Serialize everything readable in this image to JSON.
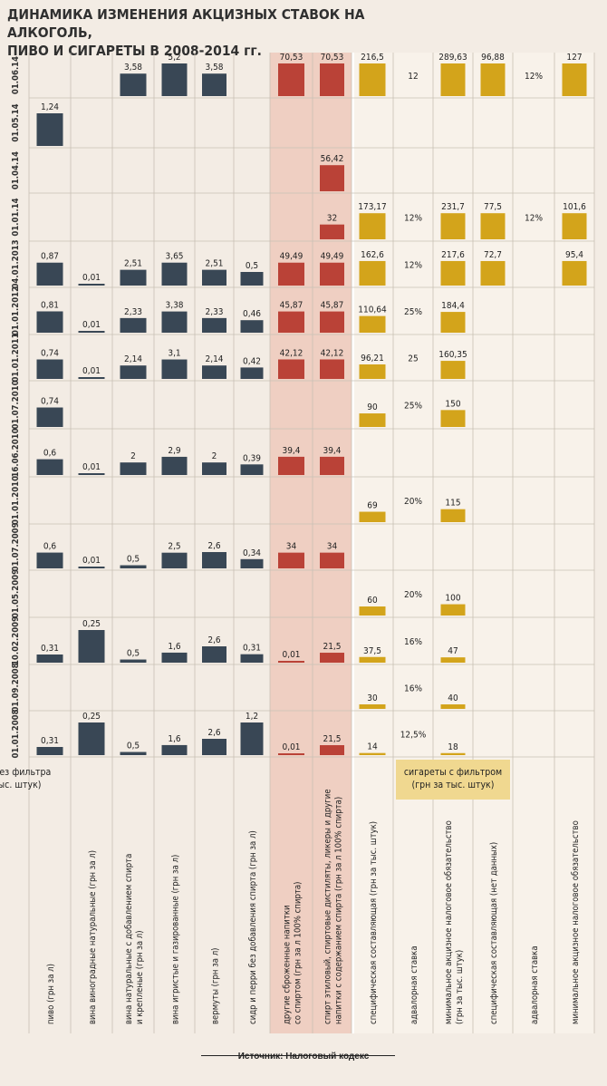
{
  "title": [
    "ДИНАМИКА ИЗМЕНЕНИЯ АКЦИЗНЫХ СТАВОК НА АЛКОГОЛЬ,",
    "ПИВО И СИГАРЕТЫ В 2008-2014 гг."
  ],
  "source": "Источник: Налоговый кодекс",
  "colors": {
    "background": "#f3ece4",
    "alcohol_band": "#efcfc2",
    "cigarettes_panel": "#f8f2ea",
    "steel_bars": "#394755",
    "red_bars": "#ba4237",
    "gold_bars": "#d3a41b",
    "header_box": "#f0d890",
    "grid": "#c8c0b4"
  },
  "chart_data": {
    "type": "bar",
    "layout": "column matrix of small bar charts: rows are effective dates, columns are excise categories",
    "dates": [
      "01.06.14",
      "01.05.14",
      "01.04.14",
      "01.01.14",
      "04.01.2013",
      "01.01.2012",
      "01.01.2011",
      "01.07.2010",
      "16.06.2010",
      "01.01.2010",
      "01.07.2009",
      "01.05.2009",
      "10.02.2009",
      "01.09.2008",
      "01.01.2008"
    ],
    "groups": [
      {
        "label": "сигареты с фильтром\n(грн за тыс. штук)",
        "columns": [
          9,
          10,
          11
        ]
      },
      {
        "label": "сигареты без фильтра\n(грн за тыс. штук)",
        "columns": [
          12,
          13,
          14
        ]
      }
    ],
    "series": [
      {
        "name": "пиво (грн за л)",
        "color": "steel",
        "max": 1.24,
        "values": [
          null,
          1.24,
          null,
          null,
          0.87,
          0.81,
          0.74,
          0.74,
          0.6,
          null,
          0.6,
          null,
          0.31,
          null,
          0.31
        ],
        "labels": [
          null,
          "1,24",
          null,
          null,
          "0,87",
          "0,81",
          "0,74",
          "0,74",
          "0,6",
          null,
          "0,6",
          null,
          "0,31",
          null,
          "0,31"
        ]
      },
      {
        "name": "вина виноградные натуральные (грн за л)",
        "color": "steel",
        "max": 0.25,
        "values": [
          null,
          null,
          null,
          null,
          0.01,
          0.01,
          0.01,
          null,
          0.01,
          null,
          0.01,
          null,
          0.25,
          null,
          0.25
        ],
        "labels": [
          null,
          null,
          null,
          null,
          "0,01",
          "0,01",
          "0,01",
          null,
          "0,01",
          null,
          "0,01",
          null,
          "0,25",
          null,
          "0,25"
        ]
      },
      {
        "name": "вина натуральные с добавлением спирта\nи крепленые (грн за л)",
        "color": "steel",
        "max": 5.2,
        "values": [
          3.58,
          null,
          null,
          null,
          2.51,
          2.33,
          2.14,
          null,
          2,
          null,
          0.5,
          null,
          0.5,
          null,
          0.5
        ],
        "labels": [
          "3,58",
          null,
          null,
          null,
          "2,51",
          "2,33",
          "2,14",
          null,
          "2",
          null,
          "0,5",
          null,
          "0,5",
          null,
          "0,5"
        ]
      },
      {
        "name": "вина игристые и газированные (грн за л)",
        "color": "steel",
        "max": 5.2,
        "values": [
          5.2,
          null,
          null,
          null,
          3.65,
          3.38,
          3.1,
          null,
          2.9,
          null,
          2.5,
          null,
          1.6,
          null,
          1.6
        ],
        "labels": [
          "5,2",
          null,
          null,
          null,
          "3,65",
          "3,38",
          "3,1",
          null,
          "2,9",
          null,
          "2,5",
          null,
          "1,6",
          null,
          "1,6"
        ]
      },
      {
        "name": "вермуты (грн за л)",
        "color": "steel",
        "max": 5.2,
        "values": [
          3.58,
          null,
          null,
          null,
          2.51,
          2.33,
          2.14,
          null,
          2,
          null,
          2.6,
          null,
          2.6,
          null,
          2.6
        ],
        "labels": [
          "3,58",
          null,
          null,
          null,
          "2,51",
          "2,33",
          "2,14",
          null,
          "2",
          null,
          "2,6",
          null,
          "2,6",
          null,
          "2,6"
        ]
      },
      {
        "name": "сидр и перри без добавления спирта (грн за л)",
        "color": "steel",
        "max": 1.2,
        "values": [
          null,
          null,
          null,
          null,
          0.5,
          0.46,
          0.42,
          null,
          0.39,
          null,
          0.34,
          null,
          0.31,
          null,
          1.2
        ],
        "labels": [
          null,
          null,
          null,
          null,
          "0,5",
          "0,46",
          "0,42",
          null,
          "0,39",
          null,
          "0,34",
          null,
          "0,31",
          null,
          "1,2"
        ]
      },
      {
        "name": "другие сброженные напитки\nсо спиртом (грн за л 100% спирта)",
        "color": "red",
        "max": 70.53,
        "values": [
          70.53,
          null,
          null,
          null,
          49.49,
          45.87,
          42.12,
          null,
          39.4,
          null,
          34,
          null,
          0.01,
          null,
          0.01
        ],
        "labels": [
          "70,53",
          null,
          null,
          null,
          "49,49",
          "45,87",
          "42,12",
          null,
          "39,4",
          null,
          "34",
          null,
          "0,01",
          null,
          "0,01"
        ]
      },
      {
        "name": "спирт этиловый, спиртовые дистиляты, ликеры и другие\nнапитки с содержанием спирта (грн за л 100% спирта)",
        "color": "red",
        "max": 70.53,
        "values": [
          70.53,
          null,
          56.42,
          32,
          49.49,
          45.87,
          42.12,
          null,
          39.4,
          null,
          34,
          null,
          21.5,
          null,
          21.5
        ],
        "labels": [
          "70,53",
          null,
          "56,42",
          "32",
          "49,49",
          "45,87",
          "42,12",
          null,
          "39,4",
          null,
          "34",
          null,
          "21,5",
          null,
          "21,5"
        ]
      },
      {
        "name": "специфическая составляющая (грн за тыс. штук)",
        "color": "gold",
        "max": 216.5,
        "values": [
          216.5,
          null,
          null,
          173.17,
          162.6,
          110.64,
          96.21,
          90,
          null,
          69,
          null,
          60,
          37.5,
          30,
          14
        ],
        "labels": [
          "216,5",
          null,
          null,
          "173,17",
          "162,6",
          "110,64",
          "96,21",
          "90",
          null,
          "69",
          null,
          "60",
          "37,5",
          "30",
          "14"
        ]
      },
      {
        "name": "адвалорная ставка",
        "color": "text",
        "max": null,
        "values": [
          12,
          null,
          null,
          12,
          12,
          25,
          25,
          25,
          null,
          20,
          null,
          20,
          16,
          16,
          12.5
        ],
        "labels": [
          "12",
          null,
          null,
          "12%",
          "12%",
          "25%",
          "25",
          "25%",
          null,
          "20%",
          null,
          "20%",
          "16%",
          "16%",
          "12,5%"
        ]
      },
      {
        "name": "минимальное акцизное налоговое обязательство\n(грн за тыс. штук)",
        "color": "gold",
        "max": 289.63,
        "values": [
          289.63,
          null,
          null,
          231.7,
          217.6,
          184.4,
          160.35,
          150,
          null,
          115,
          null,
          100,
          47,
          40,
          18
        ],
        "labels": [
          "289,63",
          null,
          null,
          "231,7",
          "217,6",
          "184,4",
          "160,35",
          "150",
          null,
          "115",
          null,
          "100",
          "47",
          "40",
          "18"
        ]
      },
      {
        "name": "специфическая составляющая (нет данных)",
        "color": "gold",
        "max": 96.88,
        "values": [
          96.88,
          null,
          null,
          77.5,
          72.7,
          null,
          null,
          null,
          null,
          null,
          null,
          null,
          null,
          null,
          null
        ],
        "labels": [
          "96,88",
          null,
          null,
          "77,5",
          "72,7",
          null,
          null,
          null,
          null,
          null,
          null,
          null,
          null,
          null,
          null
        ]
      },
      {
        "name": "адвалорная ставка",
        "color": "text",
        "max": null,
        "values": [
          12,
          null,
          null,
          12,
          null,
          null,
          null,
          null,
          null,
          null,
          null,
          null,
          null,
          null,
          null
        ],
        "labels": [
          "12%",
          null,
          null,
          "12%",
          null,
          null,
          null,
          null,
          null,
          null,
          null,
          null,
          null,
          null,
          null
        ]
      },
      {
        "name": "минимальное акцизное налоговое обязательство",
        "color": "gold",
        "max": 127,
        "values": [
          127,
          null,
          null,
          101.6,
          95.4,
          null,
          null,
          null,
          null,
          null,
          null,
          null,
          null,
          null,
          null
        ],
        "labels": [
          "127",
          null,
          null,
          "101,6",
          "95,4",
          null,
          null,
          null,
          null,
          null,
          null,
          null,
          null,
          null,
          null
        ]
      }
    ]
  }
}
